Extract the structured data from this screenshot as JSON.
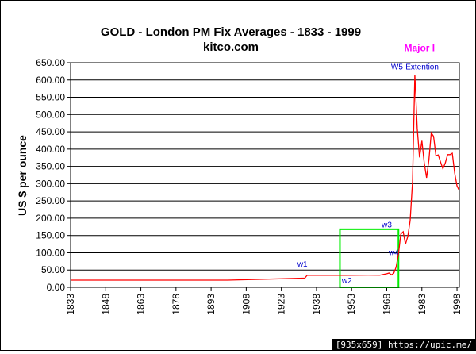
{
  "chart_data": {
    "type": "line",
    "title": "GOLD  -  London PM Fix Averages  -   1833 - 1999",
    "subtitle": "kitco.com",
    "ylabel": "US $ per ounce",
    "xlabel": "",
    "xlim": [
      1833,
      1999
    ],
    "ylim": [
      0,
      650
    ],
    "grid": true,
    "y_ticks": [
      "0.00",
      "50.00",
      "100.00",
      "150.00",
      "200.00",
      "250.00",
      "300.00",
      "350.00",
      "400.00",
      "450.00",
      "500.00",
      "550.00",
      "600.00",
      "650.00"
    ],
    "y_tick_values": [
      0,
      50,
      100,
      150,
      200,
      250,
      300,
      350,
      400,
      450,
      500,
      550,
      600,
      650
    ],
    "x_ticks": [
      "1833",
      "1848",
      "1863",
      "1878",
      "1893",
      "1908",
      "1923",
      "1938",
      "1953",
      "1968",
      "1983",
      "1998"
    ],
    "x_tick_values": [
      1833,
      1848,
      1863,
      1878,
      1893,
      1908,
      1923,
      1938,
      1953,
      1968,
      1983,
      1998
    ],
    "series": [
      {
        "color": "#ff0000",
        "x": [
          1833,
          1900,
          1933,
          1934,
          1935,
          1940,
          1950,
          1960,
          1965,
          1968,
          1969,
          1970,
          1971,
          1972,
          1973,
          1974,
          1975,
          1976,
          1977,
          1978,
          1979,
          1980,
          1981,
          1982,
          1983,
          1984,
          1985,
          1986,
          1987,
          1988,
          1989,
          1990,
          1991,
          1992,
          1993,
          1994,
          1995,
          1996,
          1997,
          1998,
          1999
        ],
        "values": [
          20.67,
          20.67,
          26.33,
          34.69,
          35.0,
          35.0,
          35.0,
          35.27,
          35.12,
          39.31,
          41.28,
          36.02,
          40.62,
          58.42,
          97.39,
          154.0,
          160.86,
          124.74,
          147.84,
          193.4,
          306.0,
          615.0,
          460.0,
          376.0,
          424.0,
          361.0,
          317.0,
          368.0,
          447.0,
          437.0,
          381.0,
          383.0,
          362.0,
          343.0,
          360.0,
          384.0,
          384.0,
          388.0,
          331.0,
          294.0,
          279.0
        ]
      }
    ],
    "annotations": [
      {
        "text": "Major I",
        "x": 1982,
        "y": 683,
        "color": "#ff00ff"
      },
      {
        "text": "W5-Extention",
        "x": 1980,
        "y": 630,
        "color": "#0000cc"
      },
      {
        "text": "w1",
        "x": 1932,
        "y": 60,
        "color": "#0000cc"
      },
      {
        "text": "w2",
        "x": 1951,
        "y": 12,
        "color": "#0000cc"
      },
      {
        "text": "w3",
        "x": 1968,
        "y": 173,
        "color": "#0000cc"
      },
      {
        "text": "w4",
        "x": 1971,
        "y": 93,
        "color": "#0000cc"
      }
    ],
    "highlight_box": {
      "x0": 1948,
      "x1": 1973,
      "y0": 0,
      "y1": 168,
      "color": "#00ee00"
    }
  },
  "footer": "[935x659] https://upic.me/"
}
